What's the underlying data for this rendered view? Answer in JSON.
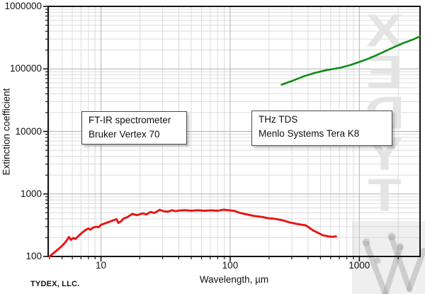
{
  "credit": "TYDEX, LLC.",
  "watermark": {
    "text": "TYDEX"
  },
  "annotations": [
    {
      "line1": "FT-IR spectrometer",
      "line2": "Bruker Vertex 70"
    },
    {
      "line1": "THz TDS",
      "line2": "Menlo Systems Tera K8"
    }
  ],
  "chart_data": {
    "type": "line",
    "title": "",
    "xlabel": "Wavelength, µm",
    "ylabel": "Extinction coefficient",
    "x_scale": "log",
    "y_scale": "log",
    "xlim": [
      3.9,
      2950
    ],
    "ylim": [
      100,
      1000000
    ],
    "grid": true,
    "legend_position": "none",
    "x_ticks": {
      "values": [
        10,
        100,
        1000
      ],
      "labels": [
        "10",
        "100",
        "1000"
      ]
    },
    "y_ticks": {
      "values": [
        100,
        1000,
        10000,
        100000,
        1000000
      ],
      "labels": [
        "100",
        "1000",
        "10000",
        "100000",
        "1000000"
      ]
    },
    "x_minor_ticks": [
      4,
      5,
      6,
      7,
      8,
      9,
      20,
      30,
      40,
      50,
      60,
      70,
      80,
      90,
      200,
      300,
      400,
      500,
      600,
      700,
      800,
      900,
      2000
    ],
    "y_minor_ticks": [
      200,
      300,
      400,
      500,
      600,
      700,
      800,
      900,
      2000,
      3000,
      4000,
      5000,
      6000,
      7000,
      8000,
      9000,
      20000,
      30000,
      40000,
      50000,
      60000,
      70000,
      80000,
      90000,
      200000,
      300000,
      400000,
      500000,
      600000,
      700000,
      800000,
      900000
    ],
    "series": [
      {
        "name": "FT-IR spectrometer Bruker Vertex 70",
        "color": "#ea1212",
        "points": [
          [
            4.0,
            100
          ],
          [
            4.3,
            113
          ],
          [
            4.6,
            127
          ],
          [
            5.0,
            148
          ],
          [
            5.35,
            172
          ],
          [
            5.65,
            205
          ],
          [
            5.85,
            184
          ],
          [
            6.1,
            198
          ],
          [
            6.35,
            191
          ],
          [
            6.7,
            213
          ],
          [
            7.1,
            238
          ],
          [
            7.6,
            265
          ],
          [
            8.0,
            280
          ],
          [
            8.3,
            268
          ],
          [
            8.7,
            290
          ],
          [
            9.2,
            299
          ],
          [
            9.6,
            294
          ],
          [
            10,
            320
          ],
          [
            11,
            344
          ],
          [
            12,
            368
          ],
          [
            13.2,
            396
          ],
          [
            13.6,
            344
          ],
          [
            14.2,
            362
          ],
          [
            15,
            405
          ],
          [
            16,
            425
          ],
          [
            17.5,
            480
          ],
          [
            19,
            456
          ],
          [
            21,
            490
          ],
          [
            22.5,
            470
          ],
          [
            24,
            514
          ],
          [
            26,
            498
          ],
          [
            28.5,
            556
          ],
          [
            30.5,
            528
          ],
          [
            33,
            520
          ],
          [
            35.5,
            548
          ],
          [
            38,
            530
          ],
          [
            41,
            544
          ],
          [
            45,
            550
          ],
          [
            50,
            538
          ],
          [
            56,
            548
          ],
          [
            63,
            538
          ],
          [
            71,
            546
          ],
          [
            80,
            538
          ],
          [
            89,
            560
          ],
          [
            97,
            548
          ],
          [
            108,
            535
          ],
          [
            119,
            497
          ],
          [
            135,
            470
          ],
          [
            154,
            444
          ],
          [
            175,
            430
          ],
          [
            196,
            410
          ],
          [
            225,
            398
          ],
          [
            255,
            378
          ],
          [
            290,
            350
          ],
          [
            330,
            330
          ],
          [
            385,
            314
          ],
          [
            436,
            263
          ],
          [
            520,
            219
          ],
          [
            575,
            209
          ],
          [
            620,
            206
          ],
          [
            660,
            209
          ]
        ]
      },
      {
        "name": "THz TDS Menlo Systems Tera K8",
        "color": "#108c14",
        "points": [
          [
            250,
            56000
          ],
          [
            300,
            64000
          ],
          [
            370,
            76000
          ],
          [
            450,
            86000
          ],
          [
            550,
            95000
          ],
          [
            650,
            101000
          ],
          [
            720,
            105000
          ],
          [
            850,
            115000
          ],
          [
            1000,
            129000
          ],
          [
            1200,
            148000
          ],
          [
            1450,
            176000
          ],
          [
            1750,
            211000
          ],
          [
            2150,
            255000
          ],
          [
            2600,
            295000
          ],
          [
            2950,
            332000
          ]
        ]
      }
    ]
  }
}
